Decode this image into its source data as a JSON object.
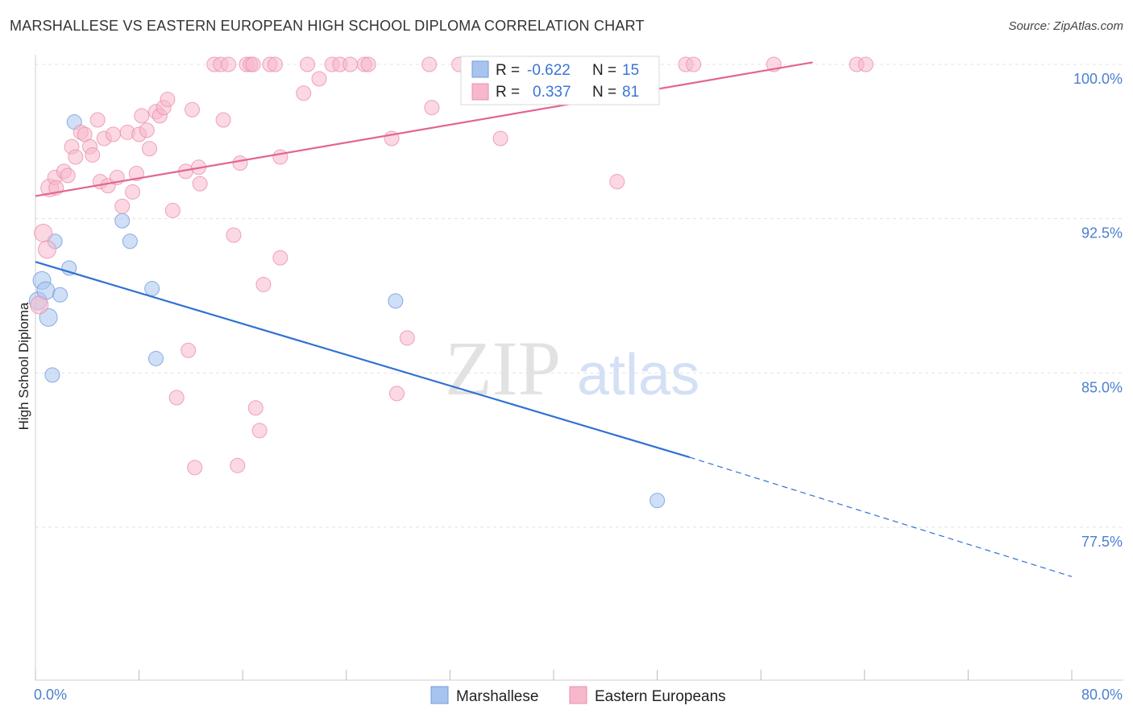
{
  "header": {
    "title": "MARSHALLESE VS EASTERN EUROPEAN HIGH SCHOOL DIPLOMA CORRELATION CHART",
    "source": "Source: ZipAtlas.com"
  },
  "watermark": {
    "zip": "ZIP",
    "atlas": "atlas"
  },
  "legend": {
    "r_label": "R =",
    "n_label": "N =",
    "series": [
      {
        "name": "Marshallese",
        "r": "-0.622",
        "n": "15",
        "color": "#a8c4ee",
        "stroke": "#6f9be0"
      },
      {
        "name": "Eastern Europeans",
        "r": "0.337",
        "n": "81",
        "color": "#f7b8cb",
        "stroke": "#ea8fae"
      }
    ]
  },
  "chart_data": {
    "type": "scatter",
    "title": "MARSHALLESE VS EASTERN EUROPEAN HIGH SCHOOL DIPLOMA CORRELATION CHART",
    "xlabel": "",
    "ylabel": "High School Diploma",
    "xlim": [
      0,
      80
    ],
    "ylim": [
      71.5,
      101.5
    ],
    "x_tick_labels": [
      "0.0%",
      "80.0%"
    ],
    "y_ticks": [
      77.5,
      85.0,
      92.5,
      100.0
    ],
    "y_tick_labels": [
      "77.5%",
      "85.0%",
      "92.5%",
      "100.0%"
    ],
    "grid": "horizontal dashed",
    "series": [
      {
        "name": "Marshallese",
        "color": "#a8c4ee",
        "line_color": "#2f72d4",
        "trend": {
          "x0": 0,
          "y0": 90.4,
          "x1": 50.5,
          "y1": 80.9,
          "dash_to_x": 80,
          "dash_to_y": 75.1
        },
        "points": [
          [
            0.2,
            88.5
          ],
          [
            0.5,
            89.5
          ],
          [
            0.8,
            89.0
          ],
          [
            1.0,
            87.7
          ],
          [
            1.3,
            84.9
          ],
          [
            1.5,
            91.4
          ],
          [
            1.9,
            88.8
          ],
          [
            2.6,
            90.1
          ],
          [
            3.0,
            97.2
          ],
          [
            6.7,
            92.4
          ],
          [
            7.3,
            91.4
          ],
          [
            9.0,
            89.1
          ],
          [
            9.3,
            85.7
          ],
          [
            27.8,
            88.5
          ],
          [
            48.0,
            78.8
          ]
        ]
      },
      {
        "name": "Eastern Europeans",
        "color": "#f7b8cb",
        "line_color": "#e2668f",
        "trend": {
          "x0": 0,
          "y0": 93.6,
          "x1": 60.0,
          "y1": 100.1
        },
        "points": [
          [
            0.3,
            88.3
          ],
          [
            0.6,
            91.8
          ],
          [
            0.9,
            91.0
          ],
          [
            1.1,
            94.0
          ],
          [
            1.5,
            94.5
          ],
          [
            1.6,
            94.0
          ],
          [
            2.2,
            94.8
          ],
          [
            2.5,
            94.6
          ],
          [
            2.8,
            96.0
          ],
          [
            3.1,
            95.5
          ],
          [
            3.5,
            96.7
          ],
          [
            3.8,
            96.6
          ],
          [
            4.2,
            96.0
          ],
          [
            4.4,
            95.6
          ],
          [
            4.8,
            97.3
          ],
          [
            5.0,
            94.3
          ],
          [
            5.3,
            96.4
          ],
          [
            5.6,
            94.1
          ],
          [
            6.0,
            96.6
          ],
          [
            6.3,
            94.5
          ],
          [
            6.7,
            93.1
          ],
          [
            7.1,
            96.7
          ],
          [
            7.5,
            93.8
          ],
          [
            7.8,
            94.7
          ],
          [
            8.0,
            96.6
          ],
          [
            8.2,
            97.5
          ],
          [
            8.6,
            96.8
          ],
          [
            8.8,
            95.9
          ],
          [
            9.3,
            97.7
          ],
          [
            9.6,
            97.5
          ],
          [
            9.9,
            97.9
          ],
          [
            10.2,
            98.3
          ],
          [
            10.6,
            92.9
          ],
          [
            10.9,
            83.8
          ],
          [
            11.6,
            94.8
          ],
          [
            11.8,
            86.1
          ],
          [
            12.1,
            97.8
          ],
          [
            12.3,
            80.4
          ],
          [
            12.6,
            95.0
          ],
          [
            12.7,
            94.2
          ],
          [
            13.8,
            100.0
          ],
          [
            14.3,
            100.0
          ],
          [
            14.5,
            97.3
          ],
          [
            14.9,
            100.0
          ],
          [
            15.3,
            91.7
          ],
          [
            15.6,
            80.5
          ],
          [
            15.8,
            95.2
          ],
          [
            16.3,
            100.0
          ],
          [
            16.6,
            100.0
          ],
          [
            16.8,
            100.0
          ],
          [
            17.0,
            83.3
          ],
          [
            17.3,
            82.2
          ],
          [
            17.6,
            89.3
          ],
          [
            18.1,
            100.0
          ],
          [
            18.5,
            100.0
          ],
          [
            18.9,
            95.5
          ],
          [
            18.9,
            90.6
          ],
          [
            20.7,
            98.6
          ],
          [
            21.0,
            100.0
          ],
          [
            21.9,
            99.3
          ],
          [
            22.9,
            100.0
          ],
          [
            23.5,
            100.0
          ],
          [
            24.3,
            100.0
          ],
          [
            25.4,
            100.0
          ],
          [
            25.7,
            100.0
          ],
          [
            27.5,
            96.4
          ],
          [
            27.9,
            84.0
          ],
          [
            28.7,
            86.7
          ],
          [
            30.4,
            100.0
          ],
          [
            30.6,
            97.9
          ],
          [
            32.7,
            100.0
          ],
          [
            35.9,
            96.4
          ],
          [
            36.0,
            100.0
          ],
          [
            39.0,
            100.0
          ],
          [
            44.9,
            94.3
          ],
          [
            47.4,
            100.0
          ],
          [
            50.2,
            100.0
          ],
          [
            50.8,
            100.0
          ],
          [
            57.0,
            100.0
          ],
          [
            63.4,
            100.0
          ],
          [
            64.1,
            100.0
          ]
        ]
      }
    ]
  }
}
